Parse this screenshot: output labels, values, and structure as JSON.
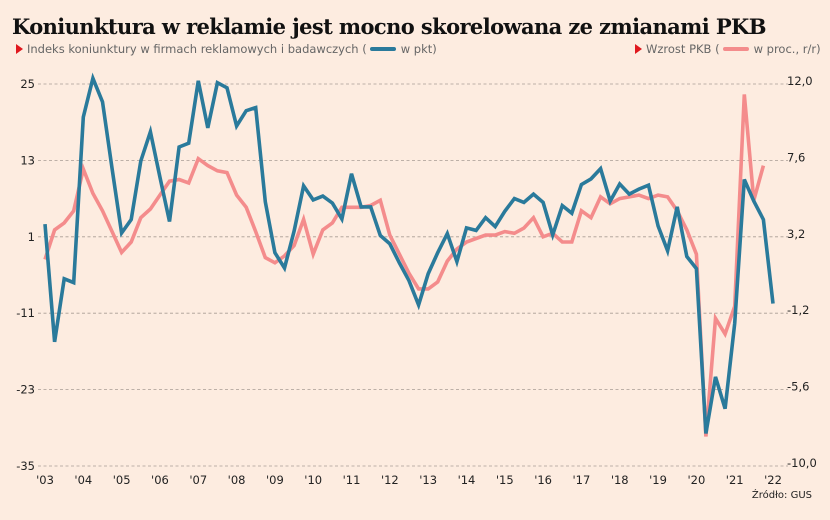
{
  "title": "Koniunktura w reklamie jest mocno skorelowana ze zmianami PKB",
  "source": "Źródło: GUS",
  "legend": {
    "left": {
      "prefix": "Indeks koniunktury w firmach reklamowych i badawczych (",
      "suffix": "w pkt)",
      "color": "#2a7a9b"
    },
    "right": {
      "prefix": "Wzrost PKB (",
      "suffix": "w proc., r/r)",
      "color": "#f48c8c"
    },
    "marker_color": "#e0181e"
  },
  "chart_data": {
    "type": "line",
    "title": "Koniunktura w reklamie jest mocno skorelowana ze zmianami PKB",
    "xlabel": "",
    "x_ticks": [
      "'03",
      "'04",
      "'05",
      "'06",
      "'07",
      "'08",
      "'09",
      "'10",
      "'11",
      "'12",
      "'13",
      "'14",
      "'15",
      "'16",
      "'17",
      "'18",
      "'19",
      "'20",
      "'21",
      "'22"
    ],
    "x_range": [
      2003.0,
      2022.0
    ],
    "left_axis": {
      "label": "w pkt",
      "range": [
        -35,
        25
      ],
      "ticks": [
        "25",
        "13",
        "1",
        "-11",
        "-23",
        "-35"
      ],
      "tick_values": [
        25,
        13,
        1,
        -11,
        -23,
        -35
      ]
    },
    "right_axis": {
      "label": "w proc., r/r",
      "range": [
        -10.0,
        12.0
      ],
      "ticks": [
        "12,0",
        "7,6",
        "3,2",
        "-1,2",
        "-5,6",
        "-10,0"
      ],
      "tick_values": [
        12.0,
        7.6,
        3.2,
        -1.2,
        -5.6,
        -10.0
      ]
    },
    "grid": true,
    "series": [
      {
        "name": "Indeks koniunktury w firmach reklamowych i badawczych",
        "axis": "left",
        "color": "#2a7a9b",
        "start": 2003.0,
        "step": 0.25,
        "values": [
          3.0,
          -15.5,
          -5.6,
          -6.2,
          19.8,
          25.9,
          22.2,
          11.7,
          1.6,
          3.7,
          12.9,
          17.5,
          10.4,
          3.4,
          15.1,
          15.7,
          25.5,
          18.1,
          25.2,
          24.4,
          18.4,
          20.8,
          21.3,
          6.5,
          -1.5,
          -3.9,
          1.9,
          9.0,
          6.8,
          7.4,
          6.3,
          3.8,
          10.9,
          5.7,
          5.7,
          1.2,
          -0.1,
          -3.1,
          -5.9,
          -9.7,
          -4.8,
          -1.5,
          1.5,
          -2.9,
          2.4,
          2.0,
          4.0,
          2.6,
          5.0,
          7.0,
          6.4,
          7.7,
          6.4,
          1.3,
          5.9,
          4.7,
          9.2,
          10.1,
          11.7,
          6.6,
          9.3,
          7.7,
          8.5,
          9.1,
          2.7,
          -1.2,
          5.7,
          -2.1,
          -4.0,
          -29.9,
          -21.0,
          -26.0,
          -12.6,
          10.0,
          6.6,
          3.7,
          -9.5
        ]
      },
      {
        "name": "Wzrost PKB",
        "axis": "right",
        "color": "#f48c8c",
        "start": 2003.0,
        "step": 0.25,
        "values": [
          1.9,
          3.6,
          4.0,
          4.7,
          7.1,
          5.7,
          4.7,
          3.5,
          2.3,
          2.9,
          4.3,
          4.8,
          5.6,
          6.4,
          6.5,
          6.3,
          7.7,
          7.3,
          7.0,
          6.9,
          5.6,
          4.9,
          3.5,
          2.0,
          1.7,
          2.1,
          2.7,
          4.2,
          2.2,
          3.6,
          4.0,
          4.9,
          4.9,
          4.9,
          5.0,
          5.3,
          3.3,
          2.2,
          1.1,
          0.2,
          0.2,
          0.6,
          1.8,
          2.5,
          2.9,
          3.1,
          3.3,
          3.3,
          3.5,
          3.4,
          3.7,
          4.3,
          3.2,
          3.4,
          2.9,
          2.9,
          4.7,
          4.3,
          5.5,
          5.1,
          5.4,
          5.5,
          5.6,
          5.4,
          5.6,
          5.5,
          4.7,
          3.6,
          2.2,
          -8.3,
          -1.5,
          -2.4,
          -0.8,
          11.4,
          5.3,
          7.3
        ]
      }
    ]
  }
}
